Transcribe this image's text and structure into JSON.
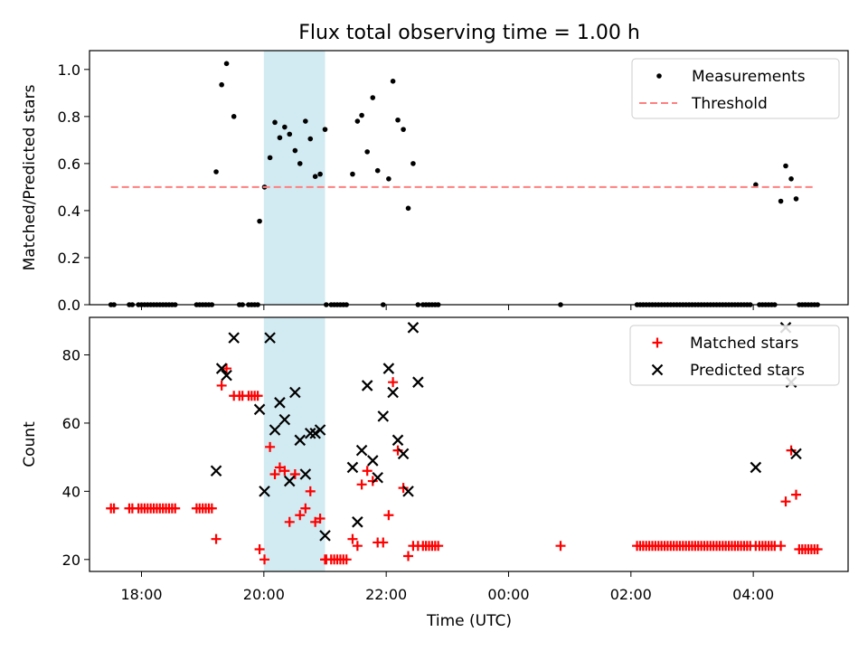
{
  "figure": {
    "title": "Flux total observing time = 1.00 h",
    "xlabel": "Time (UTC)",
    "x_tick_labels": [
      "18:00",
      "20:00",
      "22:00",
      "00:00",
      "02:00",
      "04:00"
    ],
    "x_tick_hours": [
      18,
      20,
      22,
      24,
      26,
      28
    ],
    "shaded_span_hours": [
      20.0,
      21.0
    ],
    "span_color": "#add8e6"
  },
  "chart_data": [
    {
      "type": "scatter",
      "title": "Flux total observing time = 1.00 h",
      "xlabel": "",
      "ylabel": "Matched/Predicted stars",
      "ylim": [
        0,
        1.08
      ],
      "xlim_hours": [
        17.15,
        29.55
      ],
      "y_tick_values": [
        0.0,
        0.2,
        0.4,
        0.6,
        0.8,
        1.0
      ],
      "y_tick_labels": [
        "0.0",
        "0.2",
        "0.4",
        "0.6",
        "0.8",
        "1.0"
      ],
      "legend_position": "top-right",
      "series": [
        {
          "name": "Measurements",
          "marker": "dot",
          "color": "#000000",
          "x": [
            17.5,
            17.55,
            17.8,
            17.85,
            17.95,
            18.0,
            18.05,
            18.1,
            18.15,
            18.2,
            18.25,
            18.3,
            18.35,
            18.4,
            18.45,
            18.5,
            18.55,
            18.9,
            18.95,
            19.0,
            19.05,
            19.1,
            19.15,
            19.22,
            19.31,
            19.39,
            19.51,
            19.6,
            19.65,
            19.75,
            19.8,
            19.85,
            19.9,
            19.93,
            20.01,
            20.1,
            20.18,
            20.26,
            20.34,
            20.42,
            20.51,
            20.59,
            20.68,
            20.76,
            20.84,
            20.92,
            21.0,
            21.02,
            21.1,
            21.15,
            21.2,
            21.25,
            21.3,
            21.35,
            21.45,
            21.53,
            21.6,
            21.69,
            21.78,
            21.86,
            21.95,
            22.04,
            22.11,
            22.19,
            22.28,
            22.36,
            22.44,
            22.52,
            22.6,
            22.65,
            22.7,
            22.75,
            22.8,
            22.85,
            24.85,
            26.1,
            26.15,
            26.2,
            26.25,
            26.3,
            26.35,
            26.4,
            26.45,
            26.5,
            26.55,
            26.6,
            26.65,
            26.7,
            26.75,
            26.8,
            26.85,
            26.9,
            26.95,
            27.0,
            27.05,
            27.1,
            27.15,
            27.2,
            27.25,
            27.3,
            27.35,
            27.4,
            27.45,
            27.5,
            27.55,
            27.6,
            27.65,
            27.7,
            27.75,
            27.8,
            27.85,
            27.9,
            27.95,
            28.04,
            28.1,
            28.15,
            28.2,
            28.25,
            28.3,
            28.35,
            28.45,
            28.53,
            28.62,
            28.7,
            28.75,
            28.8,
            28.85,
            28.9,
            28.95,
            29.0,
            29.05
          ],
          "y": [
            0,
            0,
            0,
            0,
            0,
            0,
            0,
            0,
            0,
            0,
            0,
            0,
            0,
            0,
            0,
            0,
            0,
            0,
            0,
            0,
            0,
            0,
            0,
            0.565,
            0.935,
            1.025,
            0.8,
            0,
            0,
            0,
            0,
            0,
            0,
            0.355,
            0.5,
            0.625,
            0.775,
            0.71,
            0.755,
            0.725,
            0.655,
            0.6,
            0.78,
            0.705,
            0.545,
            0.555,
            0.745,
            0,
            0,
            0,
            0,
            0,
            0,
            0,
            0.555,
            0.78,
            0.805,
            0.65,
            0.88,
            0.57,
            0,
            0.535,
            0.95,
            0.785,
            0.745,
            0.41,
            0.6,
            0,
            0,
            0,
            0,
            0,
            0,
            0,
            0,
            0,
            0,
            0,
            0,
            0,
            0,
            0,
            0,
            0,
            0,
            0,
            0,
            0,
            0,
            0,
            0,
            0,
            0,
            0,
            0,
            0,
            0,
            0,
            0,
            0,
            0,
            0,
            0,
            0,
            0,
            0,
            0,
            0,
            0,
            0,
            0,
            0,
            0,
            0.51,
            0,
            0,
            0,
            0,
            0,
            0,
            0.44,
            0.59,
            0.535,
            0.45,
            0,
            0,
            0,
            0,
            0,
            0,
            0
          ]
        },
        {
          "name": "Threshold",
          "marker": "dashed-line",
          "color": "#ff7f7f",
          "x": [
            17.5,
            29.0
          ],
          "y": [
            0.5,
            0.5
          ]
        }
      ]
    },
    {
      "type": "scatter",
      "ylabel": "Count",
      "xlabel": "Time (UTC)",
      "ylim": [
        16.5,
        91
      ],
      "xlim_hours": [
        17.15,
        29.55
      ],
      "y_tick_values": [
        20,
        40,
        60,
        80
      ],
      "y_tick_labels": [
        "20",
        "40",
        "60",
        "80"
      ],
      "legend_position": "top-right",
      "series": [
        {
          "name": "Matched stars",
          "marker": "plus",
          "color": "#ff0000",
          "x": [
            17.5,
            17.55,
            17.8,
            17.85,
            17.95,
            18.0,
            18.05,
            18.1,
            18.15,
            18.2,
            18.25,
            18.3,
            18.35,
            18.4,
            18.45,
            18.5,
            18.55,
            18.9,
            18.95,
            19.0,
            19.05,
            19.1,
            19.15,
            19.22,
            19.31,
            19.39,
            19.51,
            19.6,
            19.65,
            19.75,
            19.8,
            19.85,
            19.9,
            19.93,
            20.01,
            20.1,
            20.18,
            20.26,
            20.34,
            20.42,
            20.51,
            20.59,
            20.68,
            20.76,
            20.84,
            20.92,
            21.0,
            21.02,
            21.1,
            21.15,
            21.2,
            21.25,
            21.3,
            21.35,
            21.45,
            21.53,
            21.6,
            21.69,
            21.78,
            21.86,
            21.95,
            22.04,
            22.11,
            22.19,
            22.28,
            22.36,
            22.44,
            22.52,
            22.6,
            22.65,
            22.7,
            22.75,
            22.8,
            22.85,
            24.85,
            26.1,
            26.15,
            26.2,
            26.25,
            26.3,
            26.35,
            26.4,
            26.45,
            26.5,
            26.55,
            26.6,
            26.65,
            26.7,
            26.75,
            26.8,
            26.85,
            26.9,
            26.95,
            27.0,
            27.05,
            27.1,
            27.15,
            27.2,
            27.25,
            27.3,
            27.35,
            27.4,
            27.45,
            27.5,
            27.55,
            27.6,
            27.65,
            27.7,
            27.75,
            27.8,
            27.85,
            27.9,
            27.95,
            28.04,
            28.1,
            28.15,
            28.2,
            28.25,
            28.3,
            28.35,
            28.45,
            28.53,
            28.62,
            28.7,
            28.75,
            28.8,
            28.85,
            28.9,
            28.95,
            29.0,
            29.05
          ],
          "y": [
            35,
            35,
            35,
            35,
            35,
            35,
            35,
            35,
            35,
            35,
            35,
            35,
            35,
            35,
            35,
            35,
            35,
            35,
            35,
            35,
            35,
            35,
            35,
            26,
            71,
            76,
            68,
            68,
            68,
            68,
            68,
            68,
            68,
            23,
            20,
            53,
            45,
            47,
            46,
            31,
            45,
            33,
            35,
            40,
            31,
            32,
            20,
            20,
            20,
            20,
            20,
            20,
            20,
            20,
            26,
            24,
            42,
            46,
            43,
            25,
            25,
            33,
            72,
            52,
            41,
            21,
            24,
            24,
            24,
            24,
            24,
            24,
            24,
            24,
            24,
            24,
            24,
            24,
            24,
            24,
            24,
            24,
            24,
            24,
            24,
            24,
            24,
            24,
            24,
            24,
            24,
            24,
            24,
            24,
            24,
            24,
            24,
            24,
            24,
            24,
            24,
            24,
            24,
            24,
            24,
            24,
            24,
            24,
            24,
            24,
            24,
            24,
            24,
            24,
            24,
            24,
            24,
            24,
            24,
            24,
            24,
            37,
            52,
            39,
            23,
            23,
            23,
            23,
            23,
            23,
            23
          ]
        },
        {
          "name": "Predicted stars",
          "marker": "x",
          "color": "#000000",
          "x": [
            19.22,
            19.31,
            19.39,
            19.51,
            19.93,
            20.01,
            20.1,
            20.18,
            20.26,
            20.34,
            20.42,
            20.51,
            20.59,
            20.68,
            20.76,
            20.84,
            20.92,
            21.0,
            21.45,
            21.53,
            21.6,
            21.69,
            21.78,
            21.86,
            21.95,
            22.04,
            22.11,
            22.19,
            22.28,
            22.36,
            22.44,
            22.52,
            28.04,
            28.53,
            28.62,
            28.7
          ],
          "y": [
            46,
            76,
            74,
            85,
            64,
            40,
            85,
            58,
            66,
            61,
            43,
            69,
            55,
            45,
            57,
            57,
            58,
            27,
            47,
            31,
            52,
            71,
            49,
            44,
            62,
            76,
            69,
            55,
            51,
            40,
            88,
            72,
            47,
            88,
            72,
            51
          ]
        }
      ]
    }
  ]
}
